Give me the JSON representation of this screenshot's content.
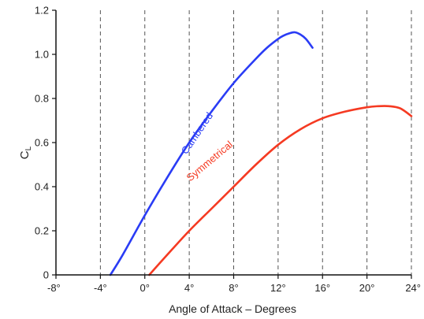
{
  "chart_data": {
    "type": "line",
    "title": "",
    "xlabel": "Angle of Attack – Degrees",
    "ylabel": {
      "main": "C",
      "sub": "L"
    },
    "xlim": [
      -8,
      24
    ],
    "ylim": [
      0,
      1.2
    ],
    "xticks": [
      -8,
      -4,
      0,
      4,
      8,
      12,
      16,
      20,
      24
    ],
    "xtick_labels": [
      "-8°",
      "-4°",
      "0°",
      "4°",
      "8°",
      "12°",
      "16°",
      "20°",
      "24°"
    ],
    "yticks": [
      0,
      0.2,
      0.4,
      0.6,
      0.8,
      1.0,
      1.2
    ],
    "ytick_labels": [
      "0",
      "0.2",
      "0.4",
      "0.6",
      "0.8",
      "1.0",
      "1.2"
    ],
    "grid": {
      "vertical": "dashed",
      "horizontal": "none"
    },
    "series": [
      {
        "name": "Cambered",
        "color": "#2a3cf5",
        "x": [
          -3.1,
          -2,
          0,
          2,
          4,
          6,
          8,
          10,
          11,
          12,
          12.5,
          13,
          13.5,
          14,
          14.5,
          15.1
        ],
        "y": [
          0,
          0.09,
          0.27,
          0.44,
          0.6,
          0.74,
          0.87,
          0.98,
          1.03,
          1.07,
          1.085,
          1.095,
          1.1,
          1.09,
          1.07,
          1.03
        ]
      },
      {
        "name": "Symmetrical",
        "color": "#f53a22",
        "x": [
          0.4,
          2,
          4,
          6,
          8,
          10,
          12,
          14,
          16,
          18,
          20,
          21,
          22,
          23,
          24
        ],
        "y": [
          0,
          0.09,
          0.2,
          0.3,
          0.4,
          0.5,
          0.59,
          0.66,
          0.71,
          0.74,
          0.76,
          0.765,
          0.765,
          0.755,
          0.72
        ]
      }
    ]
  }
}
